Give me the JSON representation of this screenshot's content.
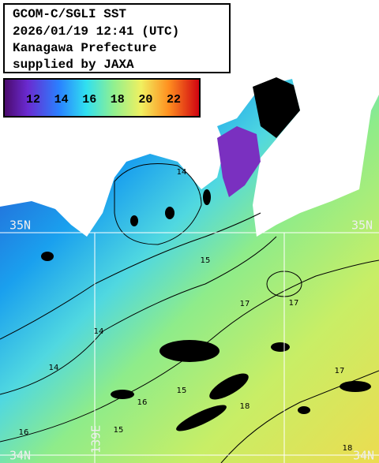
{
  "header": {
    "lines": [
      "GCOM-C/SGLI SST",
      "2026/01/19 12:41 (UTC)",
      "Kanagawa Prefecture",
      "supplied by JAXA"
    ]
  },
  "colorbar": {
    "labels": [
      "12",
      "14",
      "16",
      "18",
      "20",
      "22"
    ]
  },
  "grid_labels": {
    "lat_top_left": "35N",
    "lat_top_right": "35N",
    "lat_bottom_left": "34N",
    "lat_bottom_right": "34N",
    "lon": "139E"
  },
  "contour_labels": [
    "14",
    "14",
    "14",
    "15",
    "15",
    "15",
    "16",
    "16",
    "17",
    "17",
    "17",
    "18",
    "18"
  ]
}
